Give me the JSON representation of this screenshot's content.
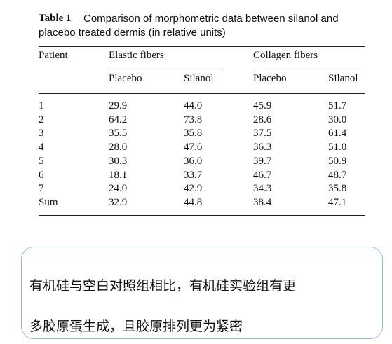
{
  "header": {
    "table_label": "Table 1",
    "caption_line1": "Comparison of morphometric data between silanol and",
    "caption_line2": "placebo treated dermis (in relative units)"
  },
  "table": {
    "patient_header": "Patient",
    "group_headers": [
      "Elastic fibers",
      "Collagen fibers"
    ],
    "subheaders": [
      "Placebo",
      "Silanol",
      "Placebo",
      "Silanol"
    ],
    "rows": [
      [
        "1",
        "29.9",
        "44.0",
        "45.9",
        "51.7"
      ],
      [
        "2",
        "64.2",
        "73.8",
        "28.6",
        "30.0"
      ],
      [
        "3",
        "35.5",
        "35.8",
        "37.5",
        "61.4"
      ],
      [
        "4",
        "28.0",
        "47.6",
        "36.3",
        "51.0"
      ],
      [
        "5",
        "30.3",
        "36.0",
        "39.7",
        "50.9"
      ],
      [
        "6",
        "18.1",
        "33.7",
        "46.7",
        "48.7"
      ],
      [
        "7",
        "24.0",
        "42.9",
        "34.3",
        "35.8"
      ],
      [
        "Sum",
        "32.9",
        "44.8",
        "38.4",
        "47.1"
      ]
    ]
  },
  "note": {
    "lines": [
      "有机硅与空白对照组相比，有机硅实验组有更",
      "多胶原蛋生成，且胶原排列更为紧密"
    ]
  }
}
